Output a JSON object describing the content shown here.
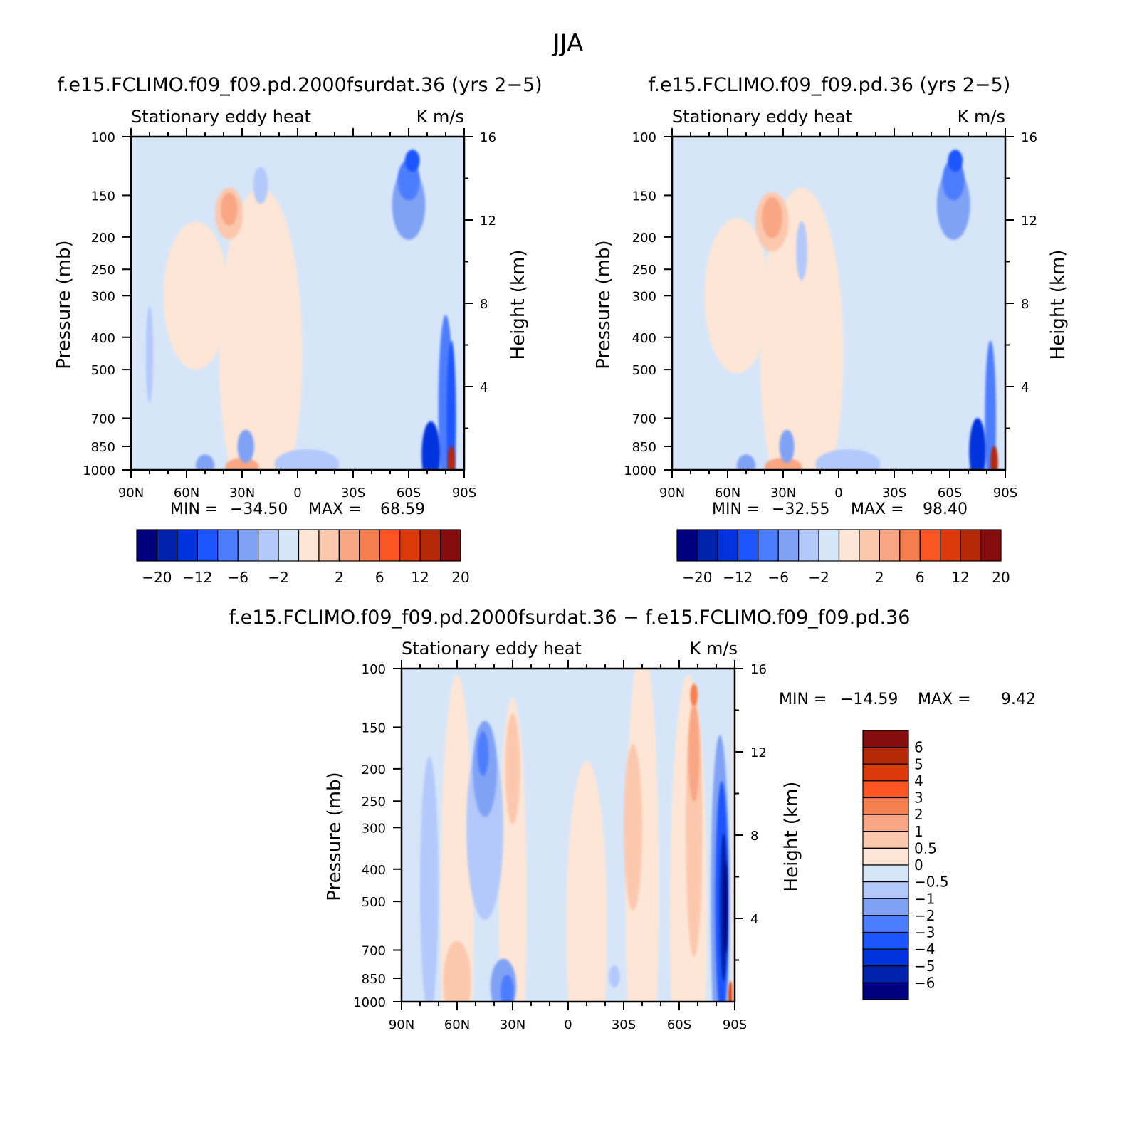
{
  "figure": {
    "season": "JJA"
  },
  "colors": {
    "main_scale": [
      "#00007f",
      "#0022aa",
      "#0033dd",
      "#1a55ff",
      "#4d7dff",
      "#80a2f5",
      "#b3c9fb",
      "#d6e6f8",
      "#fde6d6",
      "#fcc8ad",
      "#f8a684",
      "#f57f4e",
      "#fb5523",
      "#dc3a0a",
      "#b52808",
      "#840c0c"
    ],
    "diff_scale": [
      "#00007f",
      "#0022aa",
      "#0033dd",
      "#1a55ff",
      "#4d7dff",
      "#80a2f5",
      "#b3c9fb",
      "#d6e6f8",
      "#fde6d6",
      "#fcc8ad",
      "#f8a684",
      "#f57f4e",
      "#fb5523",
      "#dc3a0a",
      "#b52808",
      "#840c0c"
    ]
  },
  "chart_data": [
    {
      "type": "heatmap",
      "id": "case1",
      "title": "f.e15.FCLIMO.f09_f09.pd.2000fsurdat.36 (yrs 2−5)",
      "left_label": "Stationary eddy heat",
      "right_label": "K m/s",
      "ylabel": "Pressure (mb)",
      "y2label": "Height (km)",
      "x_ticks": [
        "90N",
        "60N",
        "30N",
        "0",
        "30S",
        "60S",
        "90S"
      ],
      "x_values": [
        90,
        60,
        30,
        0,
        -30,
        -60,
        -90
      ],
      "xlim": [
        90,
        -90
      ],
      "y_ticks": [
        "100",
        "150",
        "200",
        "250",
        "300",
        "400",
        "500",
        "700",
        "850",
        "1000"
      ],
      "y_values": [
        100,
        150,
        200,
        250,
        300,
        400,
        500,
        700,
        850,
        1000
      ],
      "ylim": [
        1000,
        100
      ],
      "y_scale": "log",
      "y2_ticks": [
        "16",
        "12",
        "8",
        "4"
      ],
      "y2_values": [
        16,
        12,
        8,
        4
      ],
      "min_label": "MIN =",
      "min_value": "−34.50",
      "max_label": "MAX =",
      "max_value": "68.59",
      "colorbar_labels": [
        "−20",
        "−12",
        "−6",
        "−2",
        "2",
        "6",
        "12",
        "20"
      ],
      "blobs": [
        {
          "lat": 90,
          "p": 550,
          "w": 55,
          "h": 1300,
          "c": 7
        },
        {
          "lat": -30,
          "p": 550,
          "w": 70,
          "h": 1300,
          "c": 7
        },
        {
          "lat": 20,
          "p": 450,
          "w": 45,
          "h": 900,
          "c": 8
        },
        {
          "lat": 55,
          "p": 300,
          "w": 35,
          "h": 400,
          "c": 8
        },
        {
          "lat": 37,
          "p": 170,
          "w": 15,
          "h": 140,
          "c": 9
        },
        {
          "lat": 37,
          "p": 165,
          "w": 9,
          "h": 90,
          "c": 10
        },
        {
          "lat": -60,
          "p": 160,
          "w": 18,
          "h": 190,
          "c": 5
        },
        {
          "lat": -60,
          "p": 135,
          "w": 12,
          "h": 110,
          "c": 4
        },
        {
          "lat": -62,
          "p": 118,
          "w": 8,
          "h": 60,
          "c": 3
        },
        {
          "lat": -80,
          "p": 650,
          "w": 8,
          "h": 500,
          "c": 4
        },
        {
          "lat": -83,
          "p": 700,
          "w": 5,
          "h": 420,
          "c": 3
        },
        {
          "lat": -72,
          "p": 900,
          "w": 10,
          "h": 180,
          "c": 2
        },
        {
          "lat": -83,
          "p": 950,
          "w": 4,
          "h": 90,
          "c": 14
        },
        {
          "lat": 30,
          "p": 980,
          "w": 18,
          "h": 50,
          "c": 10
        },
        {
          "lat": 28,
          "p": 850,
          "w": 9,
          "h": 90,
          "c": 5
        },
        {
          "lat": 50,
          "p": 970,
          "w": 10,
          "h": 60,
          "c": 5
        },
        {
          "lat": 20,
          "p": 140,
          "w": 8,
          "h": 100,
          "c": 6
        },
        {
          "lat": 80,
          "p": 450,
          "w": 4,
          "h": 260,
          "c": 6
        },
        {
          "lat": -5,
          "p": 960,
          "w": 35,
          "h": 80,
          "c": 6
        }
      ]
    },
    {
      "type": "heatmap",
      "id": "case2",
      "title": "f.e15.FCLIMO.f09_f09.pd.36 (yrs 2−5)",
      "left_label": "Stationary eddy heat",
      "right_label": "K m/s",
      "ylabel": "Pressure (mb)",
      "y2label": "Height (km)",
      "x_ticks": [
        "90N",
        "60N",
        "30N",
        "0",
        "30S",
        "60S",
        "90S"
      ],
      "x_values": [
        90,
        60,
        30,
        0,
        -30,
        -60,
        -90
      ],
      "xlim": [
        90,
        -90
      ],
      "y_ticks": [
        "100",
        "150",
        "200",
        "250",
        "300",
        "400",
        "500",
        "700",
        "850",
        "1000"
      ],
      "y_values": [
        100,
        150,
        200,
        250,
        300,
        400,
        500,
        700,
        850,
        1000
      ],
      "ylim": [
        1000,
        100
      ],
      "y_scale": "log",
      "y2_ticks": [
        "16",
        "12",
        "8",
        "4"
      ],
      "y2_values": [
        16,
        12,
        8,
        4
      ],
      "min_label": "MIN =",
      "min_value": "−32.55",
      "max_label": "MAX =",
      "max_value": "98.40",
      "colorbar_labels": [
        "−20",
        "−12",
        "−6",
        "−2",
        "2",
        "6",
        "12",
        "20"
      ],
      "blobs": [
        {
          "lat": 90,
          "p": 550,
          "w": 50,
          "h": 1300,
          "c": 7
        },
        {
          "lat": -30,
          "p": 550,
          "w": 70,
          "h": 1300,
          "c": 7
        },
        {
          "lat": 20,
          "p": 450,
          "w": 45,
          "h": 900,
          "c": 8
        },
        {
          "lat": 55,
          "p": 300,
          "w": 35,
          "h": 420,
          "c": 8
        },
        {
          "lat": 36,
          "p": 180,
          "w": 18,
          "h": 160,
          "c": 9
        },
        {
          "lat": 36,
          "p": 175,
          "w": 11,
          "h": 110,
          "c": 10
        },
        {
          "lat": -62,
          "p": 160,
          "w": 18,
          "h": 190,
          "c": 5
        },
        {
          "lat": -62,
          "p": 135,
          "w": 12,
          "h": 110,
          "c": 4
        },
        {
          "lat": -63,
          "p": 118,
          "w": 8,
          "h": 60,
          "c": 3
        },
        {
          "lat": -82,
          "p": 700,
          "w": 6,
          "h": 420,
          "c": 4
        },
        {
          "lat": -75,
          "p": 880,
          "w": 9,
          "h": 180,
          "c": 2
        },
        {
          "lat": -84,
          "p": 950,
          "w": 4,
          "h": 90,
          "c": 14
        },
        {
          "lat": 30,
          "p": 980,
          "w": 20,
          "h": 50,
          "c": 10
        },
        {
          "lat": 28,
          "p": 850,
          "w": 8,
          "h": 90,
          "c": 5
        },
        {
          "lat": 50,
          "p": 970,
          "w": 10,
          "h": 60,
          "c": 5
        },
        {
          "lat": 20,
          "p": 220,
          "w": 6,
          "h": 160,
          "c": 6
        },
        {
          "lat": -5,
          "p": 960,
          "w": 35,
          "h": 80,
          "c": 6
        }
      ]
    },
    {
      "type": "heatmap",
      "id": "diff",
      "title": "f.e15.FCLIMO.f09_f09.pd.2000fsurdat.36 − f.e15.FCLIMO.f09_f09.pd.36",
      "left_label": "Stationary eddy heat",
      "right_label": "K m/s",
      "ylabel": "Pressure (mb)",
      "y2label": "Height (km)",
      "x_ticks": [
        "90N",
        "60N",
        "30N",
        "0",
        "30S",
        "60S",
        "90S"
      ],
      "x_values": [
        90,
        60,
        30,
        0,
        -30,
        -60,
        -90
      ],
      "xlim": [
        90,
        -90
      ],
      "y_ticks": [
        "100",
        "150",
        "200",
        "250",
        "300",
        "400",
        "500",
        "700",
        "850",
        "1000"
      ],
      "y_values": [
        100,
        150,
        200,
        250,
        300,
        400,
        500,
        700,
        850,
        1000
      ],
      "ylim": [
        1000,
        100
      ],
      "y_scale": "log",
      "y2_ticks": [
        "16",
        "12",
        "8",
        "4"
      ],
      "y2_values": [
        16,
        12,
        8,
        4
      ],
      "min_label": "MIN =",
      "min_value": "−14.59",
      "max_label": "MAX =",
      "max_value": "9.42",
      "colorbar_labels": [
        "6",
        "5",
        "4",
        "3",
        "2",
        "1",
        "0.5",
        "0",
        "−0.5",
        "−1",
        "−2",
        "−3",
        "−4",
        "−5",
        "−6"
      ],
      "blobs": [
        {
          "lat": 60,
          "p": 550,
          "w": 18,
          "h": 1300,
          "c": 8
        },
        {
          "lat": 30,
          "p": 500,
          "w": 15,
          "h": 1100,
          "c": 8
        },
        {
          "lat": -10,
          "p": 600,
          "w": 22,
          "h": 900,
          "c": 8
        },
        {
          "lat": -40,
          "p": 450,
          "w": 18,
          "h": 1300,
          "c": 8
        },
        {
          "lat": -65,
          "p": 550,
          "w": 20,
          "h": 1300,
          "c": 8
        },
        {
          "lat": 45,
          "p": 300,
          "w": 20,
          "h": 500,
          "c": 6
        },
        {
          "lat": 45,
          "p": 200,
          "w": 13,
          "h": 260,
          "c": 5
        },
        {
          "lat": 46,
          "p": 180,
          "w": 6,
          "h": 120,
          "c": 4
        },
        {
          "lat": 75,
          "p": 450,
          "w": 10,
          "h": 700,
          "c": 6
        },
        {
          "lat": 30,
          "p": 200,
          "w": 8,
          "h": 300,
          "c": 9
        },
        {
          "lat": -35,
          "p": 300,
          "w": 10,
          "h": 450,
          "c": 9
        },
        {
          "lat": -68,
          "p": 300,
          "w": 9,
          "h": 700,
          "c": 9
        },
        {
          "lat": -68,
          "p": 180,
          "w": 6,
          "h": 260,
          "c": 10
        },
        {
          "lat": -68,
          "p": 120,
          "w": 4,
          "h": 60,
          "c": 11
        },
        {
          "lat": -82,
          "p": 500,
          "w": 10,
          "h": 900,
          "c": 5
        },
        {
          "lat": -83,
          "p": 500,
          "w": 7,
          "h": 650,
          "c": 3
        },
        {
          "lat": -84,
          "p": 520,
          "w": 4,
          "h": 400,
          "c": 1
        },
        {
          "lat": -85,
          "p": 520,
          "w": 2,
          "h": 250,
          "c": 0
        },
        {
          "lat": -88,
          "p": 960,
          "w": 3,
          "h": 80,
          "c": 13
        },
        {
          "lat": 60,
          "p": 870,
          "w": 15,
          "h": 220,
          "c": 9
        },
        {
          "lat": 35,
          "p": 900,
          "w": 14,
          "h": 150,
          "c": 5
        },
        {
          "lat": 33,
          "p": 930,
          "w": 7,
          "h": 90,
          "c": 4
        },
        {
          "lat": -25,
          "p": 840,
          "w": 6,
          "h": 60,
          "c": 6
        },
        {
          "lat": -90,
          "p": 500,
          "w": 3,
          "h": 1300,
          "c": 8
        }
      ]
    }
  ]
}
